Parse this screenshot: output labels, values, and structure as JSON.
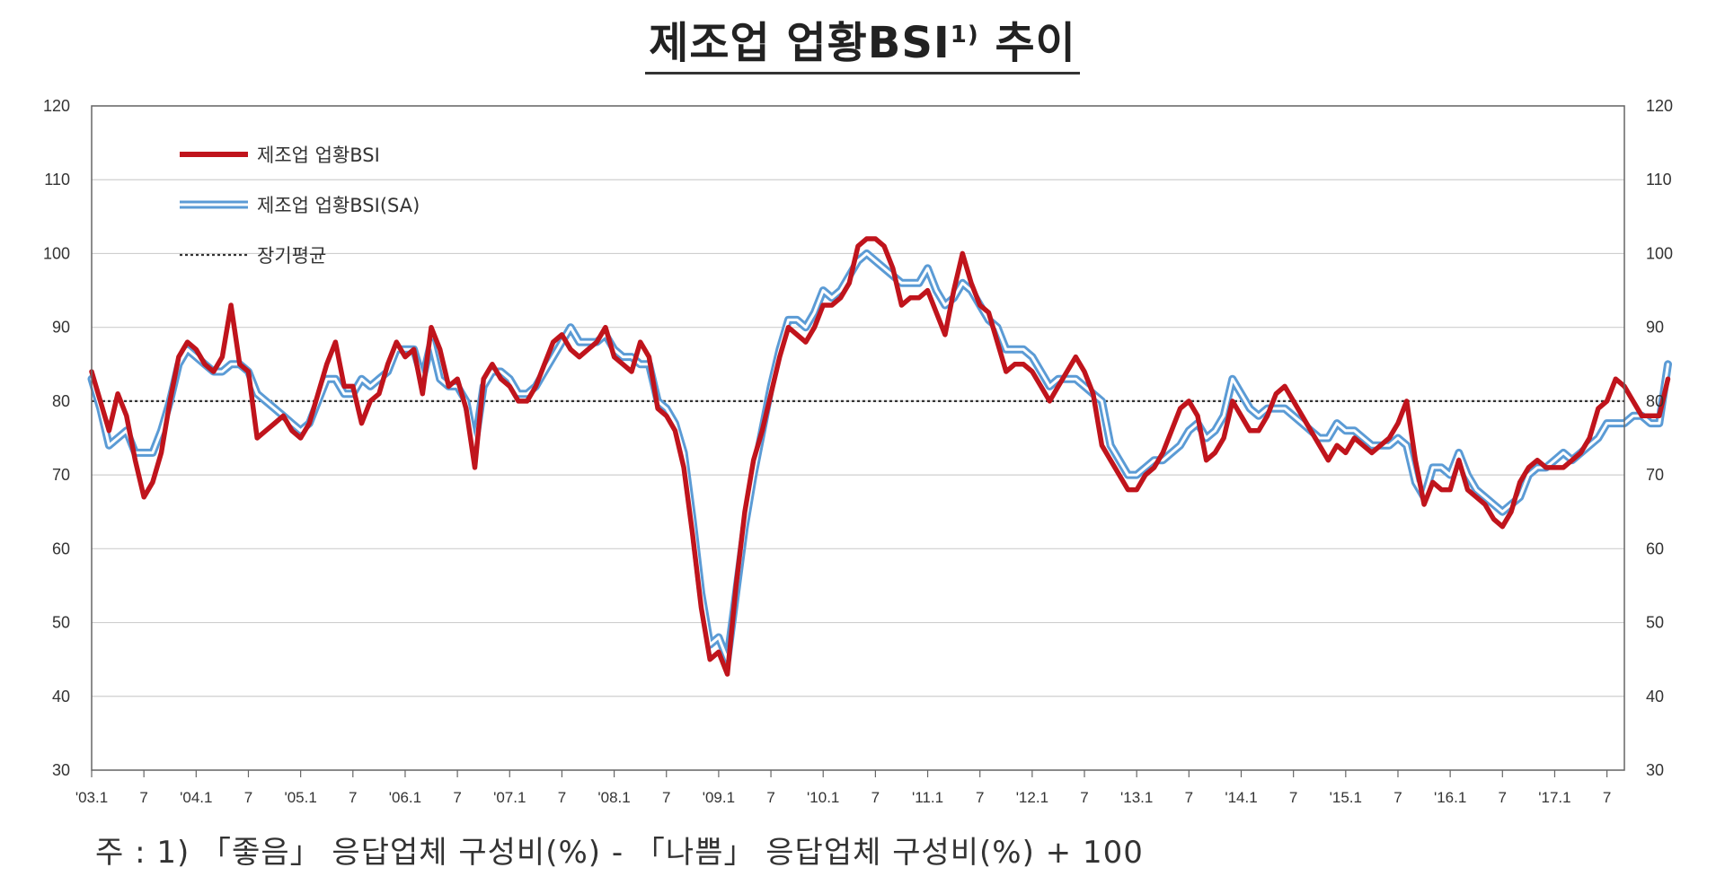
{
  "title": {
    "main": "제조업  업황BSI",
    "sup": "1)",
    "tail": " 추이"
  },
  "footnote": "주 : 1) 「좋음」 응답업체 구성비(%) - 「나쁨」 응답업체 구성비(%) + 100",
  "colors": {
    "bsi": "#c0141c",
    "sa_outer": "#5b9bd5",
    "sa_inner": "#ffffff",
    "avg": "#333333"
  },
  "chart_data": {
    "type": "line",
    "yticks": [
      30,
      40,
      50,
      60,
      70,
      80,
      90,
      100,
      110,
      120
    ],
    "ylim": [
      30,
      120
    ],
    "xlim": [
      0,
      176
    ],
    "x_ticks": [
      {
        "idx": 0,
        "label": "'03.1"
      },
      {
        "idx": 6,
        "label": "7"
      },
      {
        "idx": 12,
        "label": "'04.1"
      },
      {
        "idx": 18,
        "label": "7"
      },
      {
        "idx": 24,
        "label": "'05.1"
      },
      {
        "idx": 30,
        "label": "7"
      },
      {
        "idx": 36,
        "label": "'06.1"
      },
      {
        "idx": 42,
        "label": "7"
      },
      {
        "idx": 48,
        "label": "'07.1"
      },
      {
        "idx": 54,
        "label": "7"
      },
      {
        "idx": 60,
        "label": "'08.1"
      },
      {
        "idx": 66,
        "label": "7"
      },
      {
        "idx": 72,
        "label": "'09.1"
      },
      {
        "idx": 78,
        "label": "7"
      },
      {
        "idx": 84,
        "label": "'10.1"
      },
      {
        "idx": 90,
        "label": "7"
      },
      {
        "idx": 96,
        "label": "'11.1"
      },
      {
        "idx": 102,
        "label": "7"
      },
      {
        "idx": 108,
        "label": "'12.1"
      },
      {
        "idx": 114,
        "label": "7"
      },
      {
        "idx": 120,
        "label": "'13.1"
      },
      {
        "idx": 126,
        "label": "7"
      },
      {
        "idx": 132,
        "label": "'14.1"
      },
      {
        "idx": 138,
        "label": "7"
      },
      {
        "idx": 144,
        "label": "'15.1"
      },
      {
        "idx": 150,
        "label": "7"
      },
      {
        "idx": 156,
        "label": "'16.1"
      },
      {
        "idx": 162,
        "label": "7"
      },
      {
        "idx": 168,
        "label": "'17.1"
      },
      {
        "idx": 174,
        "label": "7"
      }
    ],
    "long_term_average": 80,
    "legend": [
      "제조업 업황BSI",
      "제조업 업황BSI(SA)",
      "장기평균"
    ],
    "legend_placement": "top-left",
    "series": [
      {
        "name": "제조업 업황BSI",
        "values": [
          84,
          80,
          76,
          81,
          78,
          72,
          67,
          69,
          73,
          80,
          86,
          88,
          87,
          85,
          84,
          86,
          93,
          85,
          84,
          75,
          76,
          77,
          78,
          76,
          75,
          77,
          81,
          85,
          88,
          82,
          82,
          77,
          80,
          81,
          85,
          88,
          86,
          87,
          81,
          90,
          87,
          82,
          83,
          79,
          71,
          83,
          85,
          83,
          82,
          80,
          80,
          82,
          85,
          88,
          89,
          87,
          86,
          87,
          88,
          90,
          86,
          85,
          84,
          88,
          86,
          79,
          78,
          76,
          71,
          62,
          52,
          45,
          46,
          43,
          55,
          65,
          72,
          76,
          81,
          86,
          90,
          89,
          88,
          90,
          93,
          93,
          94,
          96,
          101,
          102,
          102,
          101,
          98,
          93,
          94,
          94,
          95,
          92,
          89,
          95,
          100,
          96,
          93,
          92,
          88,
          84,
          85,
          85,
          84,
          82,
          80,
          82,
          84,
          86,
          84,
          81,
          74,
          72,
          70,
          68,
          68,
          70,
          71,
          73,
          76,
          79,
          80,
          78,
          72,
          73,
          75,
          80,
          78,
          76,
          76,
          78,
          81,
          82,
          80,
          78,
          76,
          74,
          72,
          74,
          73,
          75,
          74,
          73,
          74,
          75,
          77,
          80,
          72,
          66,
          69,
          68,
          68,
          72,
          68,
          67,
          66,
          64,
          63,
          65,
          69,
          71,
          72,
          71,
          71,
          71,
          72,
          73,
          75,
          79,
          80,
          83,
          82,
          80,
          78,
          78,
          78,
          83
        ]
      },
      {
        "name": "제조업 업황BSI(SA)",
        "values": [
          83,
          79,
          74,
          75,
          76,
          73,
          73,
          73,
          76,
          80,
          85,
          87,
          86,
          85,
          84,
          84,
          85,
          85,
          84,
          81,
          80,
          79,
          78,
          77,
          76,
          77,
          80,
          83,
          83,
          81,
          81,
          83,
          82,
          83,
          84,
          87,
          87,
          87,
          83,
          88,
          83,
          82,
          82,
          80,
          74,
          82,
          84,
          84,
          83,
          81,
          81,
          82,
          84,
          86,
          88,
          90,
          88,
          88,
          88,
          89,
          87,
          86,
          86,
          85,
          85,
          80,
          79,
          77,
          73,
          64,
          54,
          47,
          48,
          45,
          54,
          63,
          70,
          76,
          82,
          87,
          91,
          91,
          90,
          92,
          95,
          94,
          95,
          97,
          99,
          100,
          99,
          98,
          97,
          96,
          96,
          96,
          98,
          95,
          93,
          94,
          96,
          95,
          93,
          91,
          90,
          87,
          87,
          87,
          86,
          84,
          82,
          83,
          83,
          83,
          82,
          81,
          80,
          74,
          72,
          70,
          70,
          71,
          72,
          72,
          73,
          74,
          76,
          77,
          75,
          76,
          78,
          83,
          81,
          79,
          78,
          79,
          79,
          79,
          78,
          77,
          76,
          75,
          75,
          77,
          76,
          76,
          75,
          74,
          74,
          74,
          75,
          74,
          69,
          67,
          71,
          71,
          70,
          73,
          70,
          68,
          67,
          66,
          65,
          66,
          67,
          70,
          71,
          71,
          72,
          73,
          72,
          73,
          74,
          75,
          77,
          77,
          77,
          78,
          78,
          77,
          77,
          85
        ]
      }
    ]
  }
}
